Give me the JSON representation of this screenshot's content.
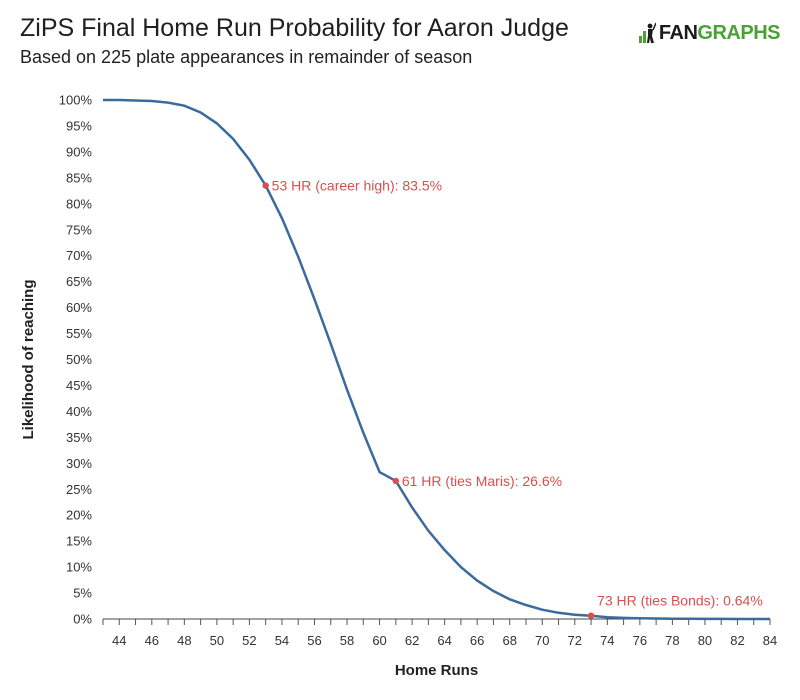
{
  "header": {
    "title": "ZiPS Final Home Run Probability for Aaron Judge",
    "subtitle": "Based on 225 plate appearances in remainder of season"
  },
  "logo": {
    "part1": "FAN",
    "part2": "GRAPHS",
    "icon": "batter-silhouette-icon",
    "accent": "#4aa136"
  },
  "chart_data": {
    "type": "line",
    "xlabel": "Home Runs",
    "ylabel": "Likelihood of reaching",
    "xlim": [
      43,
      84
    ],
    "ylim": [
      0,
      100
    ],
    "xticks": [
      44,
      46,
      48,
      50,
      52,
      54,
      56,
      58,
      60,
      62,
      64,
      66,
      68,
      70,
      72,
      74,
      76,
      78,
      80,
      82,
      84
    ],
    "yticks": [
      0,
      5,
      10,
      15,
      20,
      25,
      30,
      35,
      40,
      45,
      50,
      55,
      60,
      65,
      70,
      75,
      80,
      85,
      90,
      95,
      100
    ],
    "ytick_suffix": "%",
    "grid": false,
    "line_color": "#3a6b9c",
    "annotation_color": "#d94f4f",
    "series": [
      {
        "x": [
          43,
          44,
          45,
          46,
          47,
          48,
          49,
          50,
          51,
          52,
          53,
          54,
          55,
          56,
          57,
          58,
          59,
          60,
          61,
          62,
          63,
          64,
          65,
          66,
          67,
          68,
          69,
          70,
          71,
          72,
          73,
          74,
          75,
          76,
          77,
          78,
          79,
          80,
          81,
          82,
          83,
          84
        ],
        "values": [
          100,
          100,
          99.9,
          99.8,
          99.5,
          98.9,
          97.6,
          95.5,
          92.5,
          88.5,
          83.5,
          77.2,
          69.8,
          61.6,
          53.0,
          44.2,
          35.9,
          28.3,
          26.6,
          21.5,
          17.0,
          13.3,
          10.0,
          7.4,
          5.4,
          3.8,
          2.7,
          1.8,
          1.2,
          0.8,
          0.64,
          0.35,
          0.22,
          0.14,
          0.09,
          0.05,
          0.03,
          0.02,
          0.01,
          0.0,
          0.0,
          0.0
        ]
      }
    ],
    "annotations": [
      {
        "x": 53,
        "y": 83.5,
        "label": "53 HR (career high): 83.5%"
      },
      {
        "x": 61,
        "y": 26.6,
        "label": "61 HR (ties Maris): 26.6%"
      },
      {
        "x": 73,
        "y": 0.64,
        "label": "73 HR (ties Bonds): 0.64%"
      }
    ]
  }
}
